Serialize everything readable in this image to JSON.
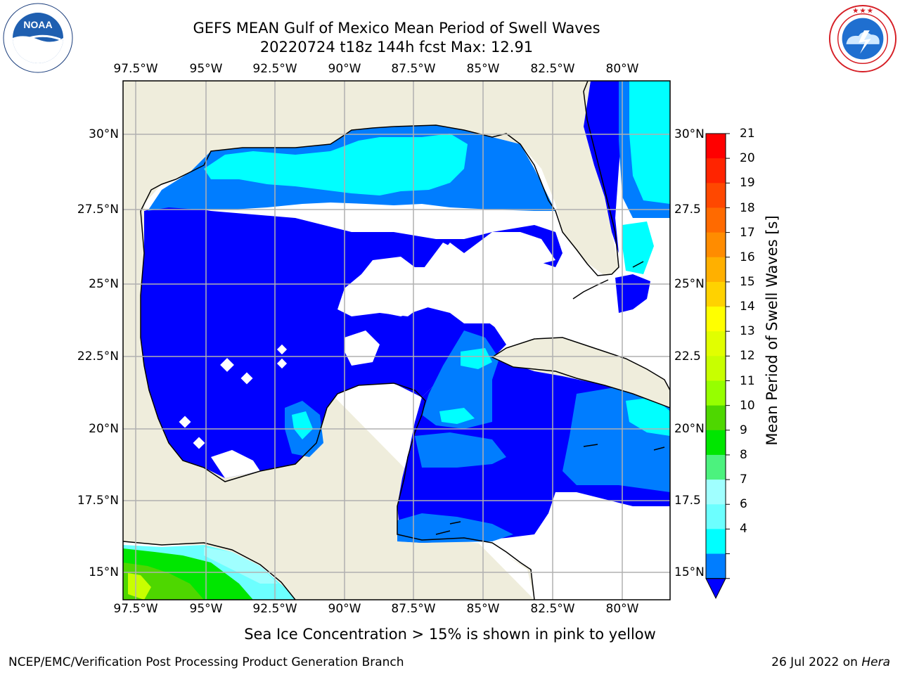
{
  "title": {
    "line1": "GEFS MEAN Gulf of Mexico Mean Period of Swell Waves",
    "line2": "20220724 t18z 144h fcst   Max: 12.91"
  },
  "logos": {
    "left_icon": "noaa-logo",
    "left_text": "NOAA",
    "left_ring_text": "NATIONAL OCEANIC AND ATMOSPHERIC ADMINISTRATION · U.S. DEPARTMENT OF COMMERCE",
    "right_icon": "nws-logo",
    "right_ring_text": "NATIONAL WEATHER SERVICE"
  },
  "map": {
    "lon_ticks": [
      "97.5°W",
      "95°W",
      "92.5°W",
      "90°W",
      "87.5°W",
      "85°W",
      "82.5°W",
      "80°W"
    ],
    "lat_ticks_left": [
      "30°N",
      "27.5°N",
      "25°N",
      "22.5°N",
      "20°N",
      "17.5°N",
      "15°N"
    ],
    "lat_ticks_right": [
      "30°N",
      "27.5",
      "25°N",
      "22.5",
      "20°N",
      "17.5",
      "15°N"
    ],
    "colors": {
      "land": "#efeddc",
      "ocean_none": "#ffffff",
      "grid": "#b0b0b0"
    }
  },
  "colorbar": {
    "label": "Mean Period of Swell Waves [s]",
    "ticks": [
      "21",
      "20",
      "19",
      "18",
      "17",
      "16",
      "15",
      "14",
      "13",
      "12",
      "11",
      "10",
      "9",
      "8",
      "7",
      "6",
      "4",
      "2"
    ],
    "colors": [
      "#ff0000",
      "#ff2400",
      "#ff4800",
      "#ff6a00",
      "#ff8c00",
      "#ffb000",
      "#ffd200",
      "#ffff00",
      "#e1ff00",
      "#c8ff00",
      "#96ff00",
      "#4ed700",
      "#00e600",
      "#4cf27e",
      "#a0ffff",
      "#6cffff",
      "#00ffff",
      "#007dff",
      "#0000ff"
    ]
  },
  "note": "Sea Ice Concentration > 15% is shown in pink to yellow",
  "footer": {
    "left": "NCEP/EMC/Verification Post Processing Product Generation Branch",
    "right_prefix": "26 Jul 2022 on ",
    "right_host": "Hera"
  }
}
